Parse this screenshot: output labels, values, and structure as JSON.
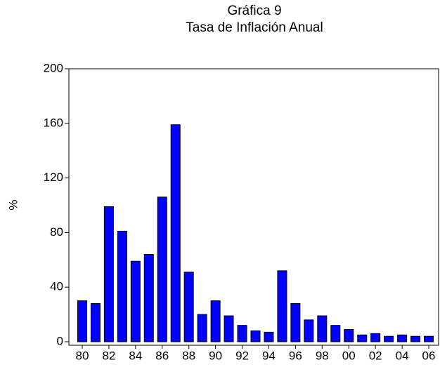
{
  "chart_data": {
    "type": "bar",
    "title": "Gráfica 9",
    "subtitle": "Tasa de Inflación Anual",
    "y_label": "%",
    "categories": [
      "80",
      null,
      "82",
      null,
      "84",
      null,
      "86",
      null,
      "88",
      null,
      "90",
      null,
      "92",
      null,
      "94",
      null,
      "96",
      null,
      "98",
      null,
      "00",
      null,
      "02",
      null,
      "04",
      null,
      "06"
    ],
    "values": [
      30,
      28,
      99,
      81,
      59,
      64,
      106,
      159,
      51,
      20,
      30,
      19,
      12,
      8,
      7,
      52,
      28,
      16,
      19,
      12,
      9,
      5,
      6,
      4,
      5,
      4,
      4
    ],
    "color": "#0000ff",
    "ylim": [
      0,
      200
    ],
    "yticks": [
      0,
      40,
      80,
      120,
      160,
      200
    ],
    "grid": false
  }
}
